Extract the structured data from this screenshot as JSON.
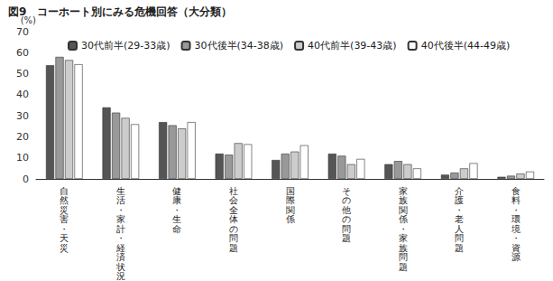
{
  "chart_data": {
    "type": "bar",
    "title": "図9　コーホート別にみる危機回答（大分類）",
    "ylabel": "(%)",
    "categories": [
      "自然災害・天災",
      "生活・家計・経済状況",
      "健康・生命",
      "社会全体の問題",
      "国際関係",
      "その他の問題",
      "家族関係・家族問題",
      "介護・老人問題",
      "食料・環境・資源"
    ],
    "series": [
      {
        "name": "30代前半(29-33歳)",
        "color": "#555555",
        "values": [
          54,
          34,
          27,
          12,
          9,
          12,
          7,
          2,
          1
        ]
      },
      {
        "name": "30代後半(34-38歳)",
        "color": "#999999",
        "values": [
          58,
          31.5,
          25.5,
          11.5,
          12,
          11,
          8.5,
          3,
          1.5
        ]
      },
      {
        "name": "40代前半(39-43歳)",
        "color": "#cccccc",
        "values": [
          56.5,
          29,
          24,
          17,
          13,
          7,
          7,
          5,
          2.5
        ]
      },
      {
        "name": "40代後半(44-49歳)",
        "color": "#ffffff",
        "values": [
          54.5,
          26,
          27,
          16.5,
          16,
          9.5,
          5,
          7.5,
          3.5
        ]
      }
    ],
    "ylim": [
      0,
      70
    ],
    "yticks": [
      0,
      10,
      20,
      30,
      40,
      50,
      60,
      70
    ],
    "grid": false,
    "legend": "top"
  }
}
